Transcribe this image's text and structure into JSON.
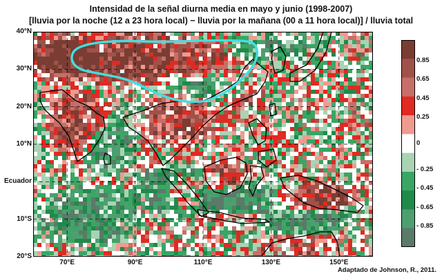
{
  "title": {
    "line1": "Intensidad de la señal diurna media en mayo y junio (1998-2007)",
    "line2": "[lluvia por la noche (12 a 23 hora local) − lluvia por la mañana (00 a 11 hora local)] / lluvia total"
  },
  "axes": {
    "lat_labels": [
      {
        "text": "40°N",
        "lat": 40
      },
      {
        "text": "30°N",
        "lat": 30
      },
      {
        "text": "20°N",
        "lat": 20
      },
      {
        "text": "10°N",
        "lat": 10
      },
      {
        "text": "Ecuador",
        "lat": 0
      },
      {
        "text": "10°S",
        "lat": -10
      },
      {
        "text": "20°S",
        "lat": -20
      }
    ],
    "lon_labels": [
      {
        "text": "70°E",
        "lon": 70
      },
      {
        "text": "90°E",
        "lon": 90
      },
      {
        "text": "110°E",
        "lon": 110
      },
      {
        "text": "130°E",
        "lon": 130
      },
      {
        "text": "150°E",
        "lon": 150
      }
    ],
    "lon_range": [
      60,
      160
    ],
    "lat_range": [
      -20,
      40
    ],
    "grid": "dashed"
  },
  "colorbar": {
    "labels": [
      "0.85",
      "0.65",
      "0.45",
      "0.25",
      "0",
      "- 0.25",
      "- 0.45",
      "- 0.65",
      "- 0.85"
    ],
    "colors": [
      "#7a3d33",
      "#a0524a",
      "#c86e68",
      "#e02a22",
      "#f09a90",
      "#ffffff",
      "#a8d3b4",
      "#3aa565",
      "#1f8a4a",
      "#4e9e70",
      "#5b7a68"
    ]
  },
  "highlight": {
    "color": "#40e0e0",
    "region": "Meseta tibetana / montañas"
  },
  "credit": "Adaptado de Johnson, R., 2011."
}
